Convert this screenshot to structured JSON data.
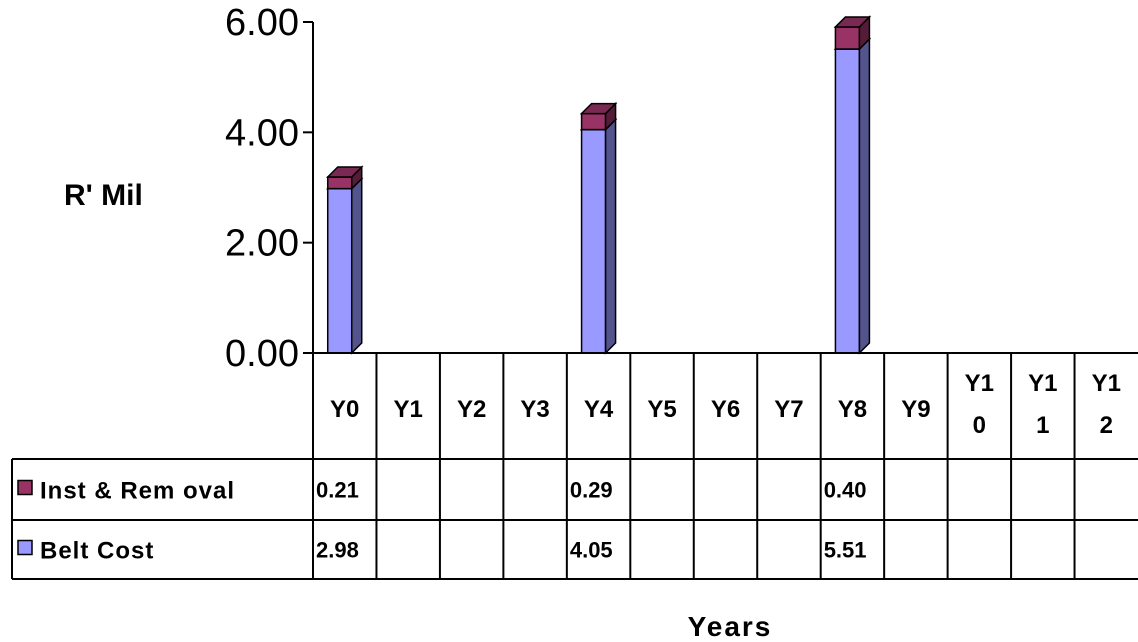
{
  "chart_data": {
    "type": "bar",
    "stacked": true,
    "style": "3d-column-with-data-table",
    "categories": [
      "Y0",
      "Y1",
      "Y2",
      "Y3",
      "Y4",
      "Y5",
      "Y6",
      "Y7",
      "Y8",
      "Y9",
      "Y10",
      "Y11",
      "Y12"
    ],
    "category_display": [
      [
        "Y0"
      ],
      [
        "Y1"
      ],
      [
        "Y2"
      ],
      [
        "Y3"
      ],
      [
        "Y4"
      ],
      [
        "Y5"
      ],
      [
        "Y6"
      ],
      [
        "Y7"
      ],
      [
        "Y8"
      ],
      [
        "Y9"
      ],
      [
        "Y1",
        "0"
      ],
      [
        "Y1",
        "1"
      ],
      [
        "Y1",
        "2"
      ]
    ],
    "series": [
      {
        "name": "Belt Cost",
        "color": "#9999ff",
        "values": [
          2.98,
          null,
          null,
          null,
          4.05,
          null,
          null,
          null,
          5.51,
          null,
          null,
          null,
          null
        ],
        "labels": [
          "2.98",
          "",
          "",
          "",
          "4.05",
          "",
          "",
          "",
          "5.51",
          "",
          "",
          "",
          ""
        ]
      },
      {
        "name": "Inst & Rem oval",
        "color": "#993366",
        "values": [
          0.21,
          null,
          null,
          null,
          0.29,
          null,
          null,
          null,
          0.4,
          null,
          null,
          null,
          null
        ],
        "labels": [
          "0.21",
          "",
          "",
          "",
          "0.29",
          "",
          "",
          "",
          "0.40",
          "",
          "",
          "",
          ""
        ]
      }
    ],
    "table_row_order": [
      "Inst & Rem oval",
      "Belt Cost"
    ],
    "yticks": [
      "0.00",
      "2.00",
      "4.00",
      "6.00"
    ],
    "ylim": [
      0,
      6
    ],
    "ylabel": "R' Mil",
    "xlabel": "Years",
    "legend": "data-table-left"
  }
}
